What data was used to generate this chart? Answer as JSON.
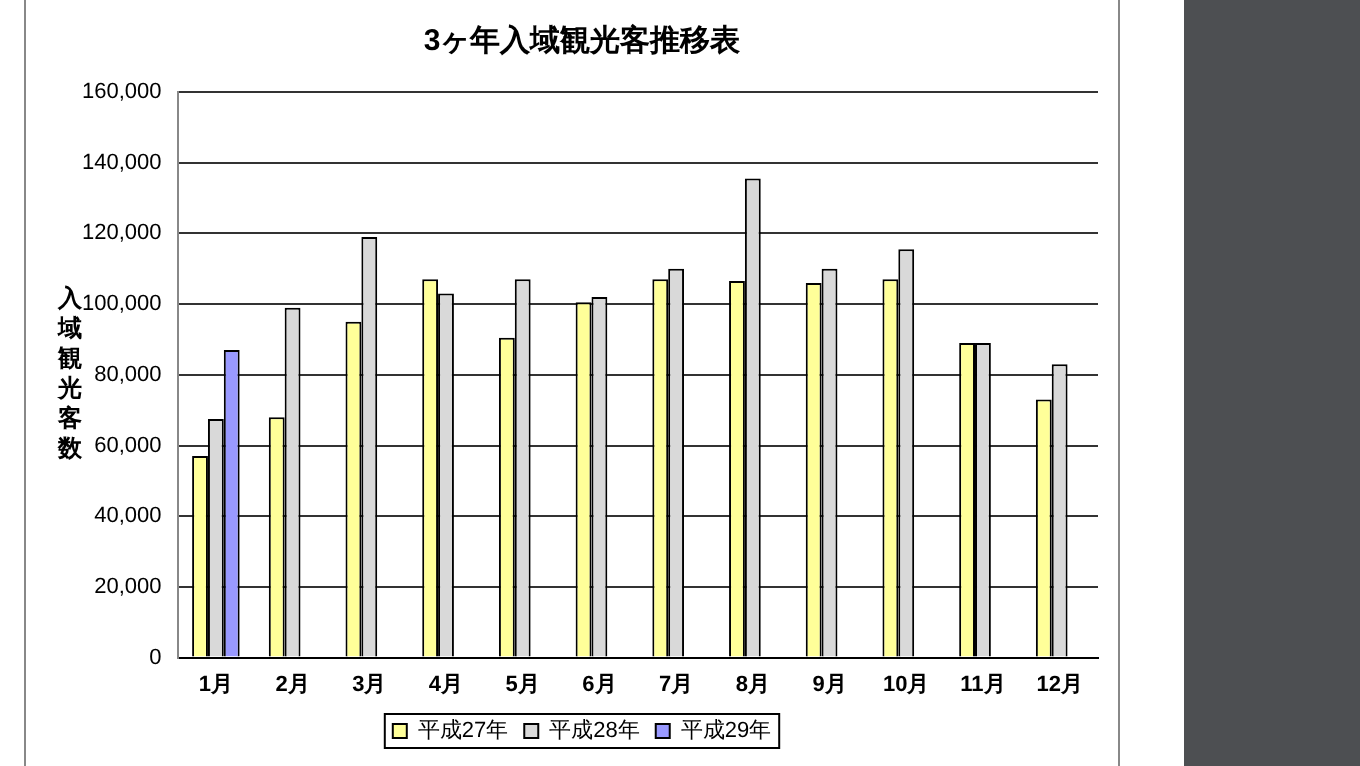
{
  "chart_data": {
    "type": "bar",
    "title": "3ヶ年入域観光客推移表",
    "ylabel": "入域観光客数",
    "categories": [
      "1月",
      "2月",
      "3月",
      "4月",
      "5月",
      "6月",
      "7月",
      "8月",
      "9月",
      "10月",
      "11月",
      "12月"
    ],
    "series": [
      {
        "name": "平成27年",
        "color": "#ffff99",
        "values": [
          57000,
          68000,
          95000,
          107000,
          90500,
          100500,
          107000,
          106500,
          106000,
          107000,
          89000,
          73000
        ]
      },
      {
        "name": "平成28年",
        "color": "#d9d9d9",
        "values": [
          67500,
          99000,
          119000,
          103000,
          107000,
          102000,
          110000,
          135500,
          110000,
          115500,
          89000,
          83000
        ]
      },
      {
        "name": "平成29年",
        "color": "#9999ff",
        "values": [
          87000,
          null,
          null,
          null,
          null,
          null,
          null,
          null,
          null,
          null,
          null,
          null
        ]
      }
    ],
    "ylim": [
      0,
      160000
    ],
    "yticks": [
      {
        "value": 0,
        "label": "0"
      },
      {
        "value": 20000,
        "label": "20,000"
      },
      {
        "value": 40000,
        "label": "40,000"
      },
      {
        "value": 60000,
        "label": "60,000"
      },
      {
        "value": 80000,
        "label": "80,000"
      },
      {
        "value": 100000,
        "label": "100,000"
      },
      {
        "value": 120000,
        "label": "120,000"
      },
      {
        "value": 140000,
        "label": "140,000"
      },
      {
        "value": 160000,
        "label": "160,000"
      }
    ],
    "grid": "y",
    "legend": "bottom"
  }
}
